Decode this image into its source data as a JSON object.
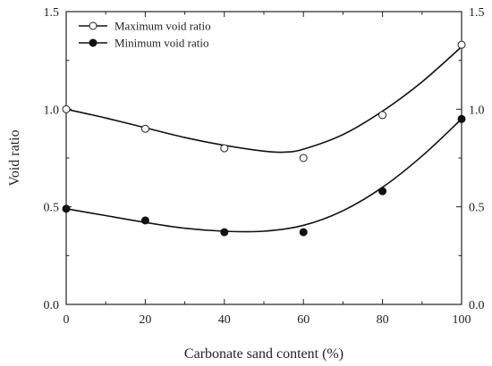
{
  "chart_data": {
    "type": "scatter",
    "xlabel": "Carbonate sand content (%)",
    "ylabel": "Void ratio",
    "xlim": [
      0,
      100
    ],
    "ylim": [
      0.0,
      1.5
    ],
    "x_ticks": [
      0,
      20,
      40,
      60,
      80,
      100
    ],
    "y_ticks": [
      0.0,
      0.5,
      1.0,
      1.5
    ],
    "x_tick_labels": [
      "0",
      "20",
      "40",
      "60",
      "80",
      "100"
    ],
    "y_tick_labels": [
      "0.0",
      "0.5",
      "1.0",
      "1.5"
    ],
    "right_y_tick_labels": [
      "0.0",
      "0.5",
      "1.0",
      "1.5"
    ],
    "grid": false,
    "legend_position": "top-left",
    "series": [
      {
        "name": "Maximum void ratio",
        "marker": "open-circle",
        "color": "#222222",
        "x": [
          0,
          20,
          40,
          60,
          80,
          100
        ],
        "y": [
          1.0,
          0.9,
          0.8,
          0.75,
          0.97,
          1.33
        ],
        "fit_curve": {
          "x": [
            0,
            10,
            20,
            30,
            40,
            50,
            55,
            60,
            70,
            80,
            90,
            100
          ],
          "y": [
            1.0,
            0.955,
            0.905,
            0.855,
            0.815,
            0.785,
            0.78,
            0.795,
            0.87,
            0.99,
            1.14,
            1.32
          ]
        }
      },
      {
        "name": "Minimum void ratio",
        "marker": "filled-circle",
        "color": "#111111",
        "x": [
          0,
          20,
          40,
          60,
          80,
          100
        ],
        "y": [
          0.49,
          0.43,
          0.37,
          0.37,
          0.58,
          0.95
        ],
        "fit_curve": {
          "x": [
            0,
            10,
            20,
            30,
            40,
            50,
            60,
            70,
            80,
            90,
            100
          ],
          "y": [
            0.49,
            0.455,
            0.42,
            0.39,
            0.375,
            0.375,
            0.405,
            0.48,
            0.6,
            0.76,
            0.95
          ]
        }
      }
    ]
  }
}
